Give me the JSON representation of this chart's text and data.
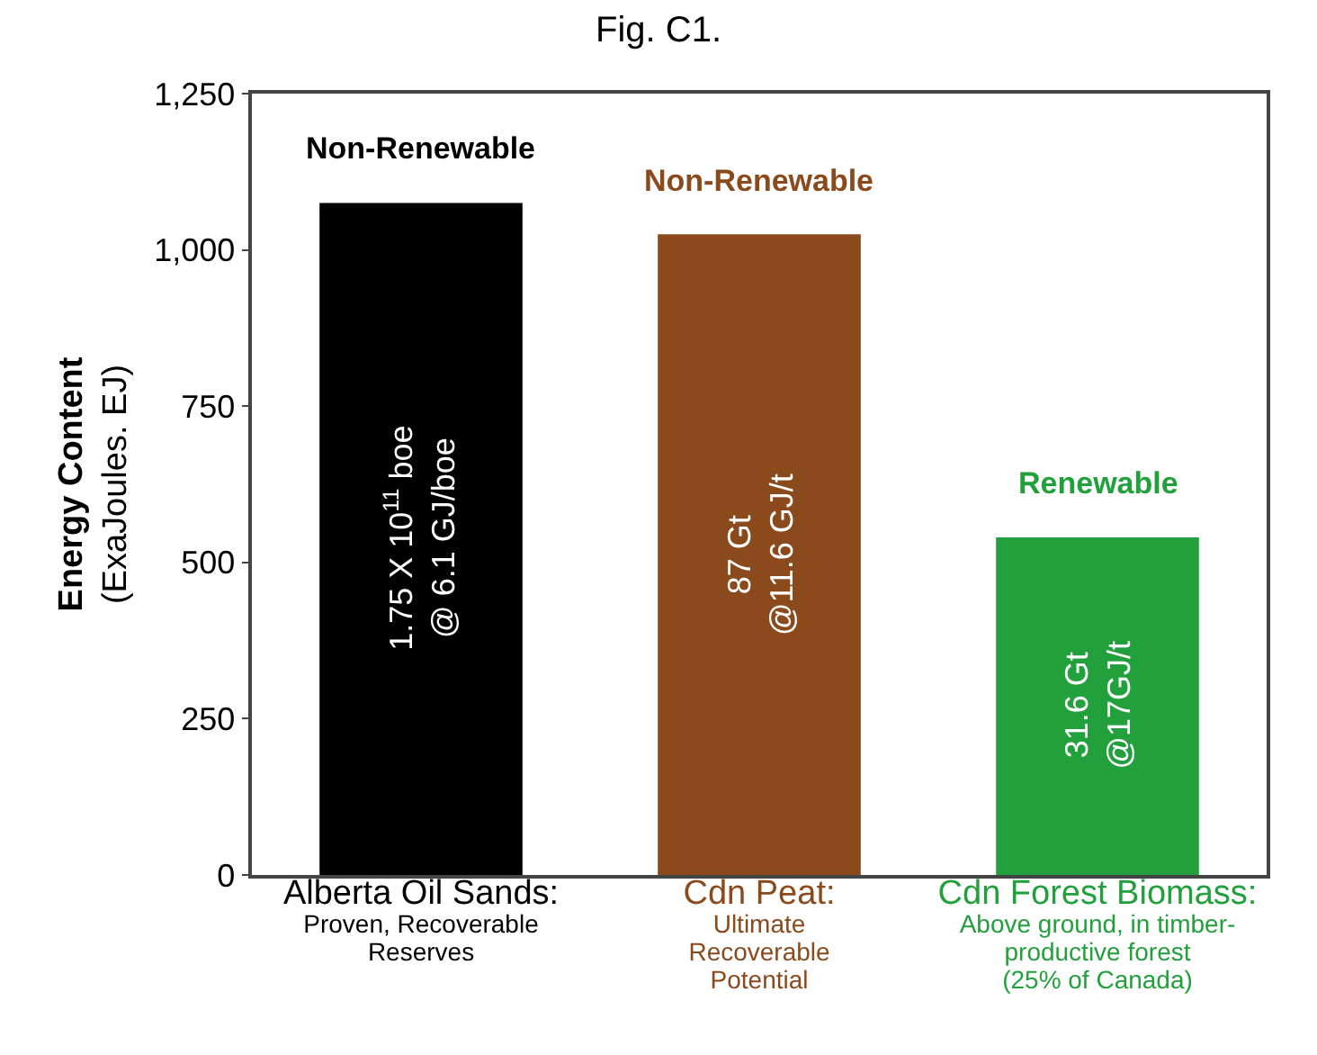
{
  "chart_data": {
    "type": "bar",
    "title": "Fig. C1.",
    "ylabel": "Energy Content\n(ExaJoules. EJ)",
    "categories": [
      "Alberta Oil Sands:\nProven, Recoverable\nReserves",
      "Cdn Peat:\nUltimate\nRecoverable\nPotential",
      "Cdn Forest Biomass:\nAbove ground, in timber-\nproductive forest\n(25% of Canada)"
    ],
    "values": [
      1075,
      1025,
      540
    ],
    "colors": [
      "#000000",
      "#8b4a1c",
      "#22a03c"
    ],
    "annotations": [
      "Non-Renewable",
      "Non-Renewable",
      "Renewable",
      "1.75 X 10$^{11}$ boe\n@ 6.1 GJ/boe",
      "87 Gt\n@11.6 GJ/t",
      "31.6 Gt\n@17GJ/t"
    ],
    "ylim": [
      0,
      1250
    ],
    "yticks": [
      0,
      {
        "value": 250,
        "label": "250"
      },
      {
        "value": 500,
        "label": "500"
      },
      {
        "value": 750,
        "label": "750"
      },
      {
        "value": 1000,
        "label": "1,000"
      },
      {
        "value": 1250,
        "label": "1,250"
      }
    ],
    "grid": false
  }
}
